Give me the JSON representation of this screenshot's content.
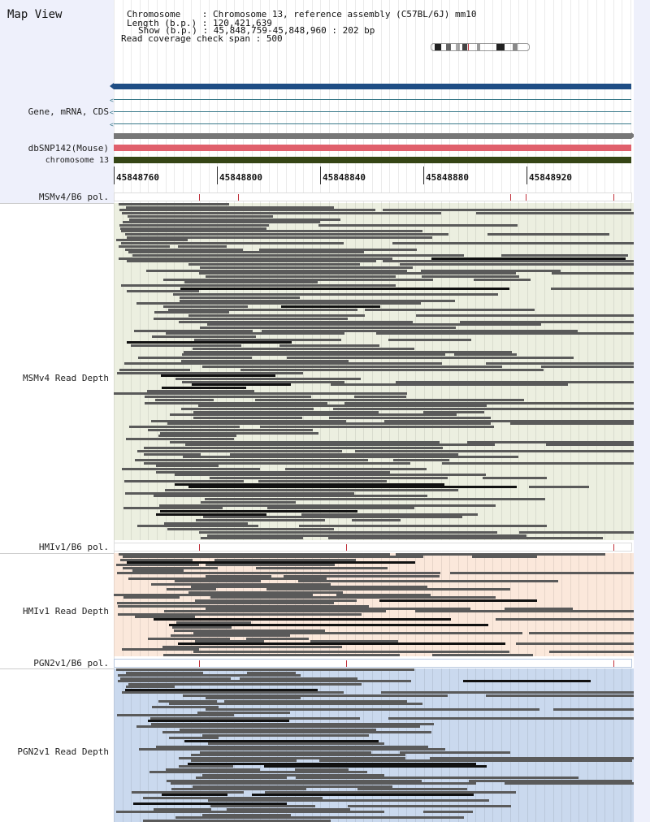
{
  "title": "Map View",
  "header": {
    "chromosome_label": "Chromosome    :",
    "chromosome_value": "Chromosome 13, reference assembly (C57BL/6J) mm10",
    "length_label": "Length (b.p.) :",
    "length_value": "120,421,639",
    "show_label": "Show (b.p.) :",
    "show_value": "45,848,759-45,848,960 : 202 bp",
    "coverage_label": "Read coverage check span :",
    "coverage_value": "500"
  },
  "tracks": {
    "gene": "Gene, mRNA, CDS",
    "dbsnp": "dbSNP142(Mouse)",
    "chromosome": "chromosome 13"
  },
  "axis_ticks": [
    "45848760",
    "45848800",
    "45848840",
    "45848880",
    "45848920"
  ],
  "panels": [
    {
      "pol_label": "MSMv4/B6 pol.",
      "depth_label": "MSMv4 Read Depth",
      "color": "#ecefe0"
    },
    {
      "pol_label": "HMIv1/B6 pol.",
      "depth_label": "HMIv1 Read Depth",
      "color": "#fbe8db"
    },
    {
      "pol_label": "PGN2v1/B6 pol.",
      "depth_label": "PGN2v1 Read Depth",
      "color": "#cad9ee"
    }
  ],
  "colors": {
    "gene_bar": "#1f4e85",
    "transcript_line": "#3a7a8a",
    "dbsnp_bar": "#e0606c",
    "chromosome_bar": "#354515",
    "snp_mark": "#c0303a",
    "read": "#5a5a5a"
  }
}
